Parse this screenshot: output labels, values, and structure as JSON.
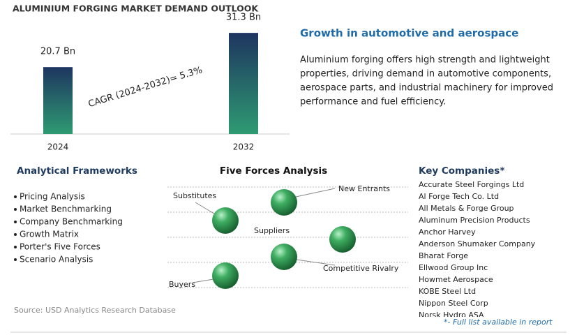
{
  "header": {
    "title": "ALUMINIUM FORGING MARKET DEMAND OUTLOOK"
  },
  "chart_data": {
    "type": "bar",
    "categories": [
      "2024",
      "2032"
    ],
    "values": [
      20.7,
      31.3
    ],
    "value_labels": [
      "20.7 Bn",
      "31.3 Bn"
    ],
    "annotation": "CAGR (2024-2032)=   5.3%",
    "ylim": [
      0,
      35
    ]
  },
  "highlight": {
    "title": "Growth in automotive and aerospace",
    "lines": [
      "Aluminium forging offers high strength and lightweight",
      "properties, driving demand in automotive components,",
      "aerospace parts, and industrial machinery for improved",
      "performance and fuel efficiency."
    ]
  },
  "frameworks": {
    "title": "Analytical Frameworks",
    "items": [
      "Pricing Analysis",
      "Market Benchmarking",
      "Company Benchmarking",
      "Growth Matrix",
      "Porter's Five Forces",
      "Scenario Analysis"
    ]
  },
  "five_forces": {
    "title": "Five Forces Analysis",
    "labels": [
      "Substitutes",
      "New Entrants",
      "Suppliers",
      "Competitive Rivalry",
      "Buyers"
    ]
  },
  "companies": {
    "title": "Key Companies*",
    "items": [
      "Accurate Steel Forgings Ltd",
      "Al Forge Tech Co. Ltd",
      "All Metals & Forge Group",
      "Aluminum Precision Products",
      "Anchor Harvey",
      "Anderson Shumaker Company",
      "Bharat Forge",
      "Ellwood Group Inc",
      "Howmet Aerospace",
      "KOBE Steel Ltd",
      "Nippon Steel Corp",
      "Norsk Hydro ASA"
    ],
    "note": "*- Full list available in report"
  },
  "source": "Source: USD Analytics Research Database"
}
